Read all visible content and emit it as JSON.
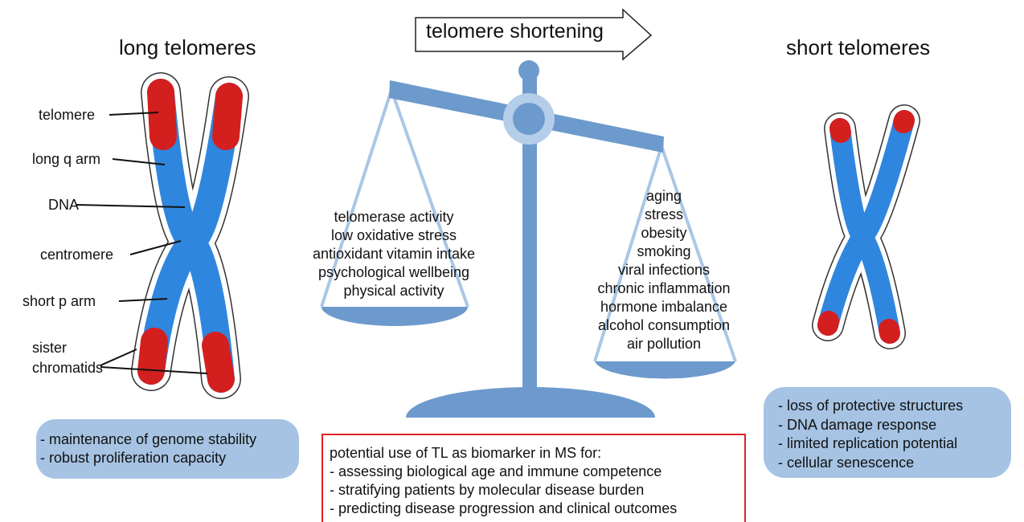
{
  "arrow_label": "telomere shortening",
  "left": {
    "title": "long telomeres",
    "labels": [
      "telomere",
      "long q arm",
      "DNA",
      "centromere",
      "short p arm",
      "sister chromatids"
    ],
    "features": [
      "- maintenance of genome stability",
      "- robust proliferation capacity"
    ]
  },
  "scale": {
    "left_pan": [
      "telomerase activity",
      "low oxidative stress",
      "antioxidant vitamin intake",
      "psychological wellbeing",
      "physical activity"
    ],
    "right_pan": [
      "aging",
      "stress",
      "obesity",
      "smoking",
      "viral infections",
      "chronic inflammation",
      "hormone imbalance",
      "alcohol consumption",
      "air pollution"
    ]
  },
  "right": {
    "title": "short telomeres",
    "features": [
      "- loss of protective structures",
      "- DNA damage response",
      "- limited replication potential",
      "- cellular senescence"
    ]
  },
  "biomarker": {
    "heading": "potential use of TL as biomarker in MS for:",
    "items": [
      "- assessing biological age and immune competence",
      "- stratifying patients by molecular disease burden",
      "- predicting disease progression and clinical outcomes"
    ]
  }
}
